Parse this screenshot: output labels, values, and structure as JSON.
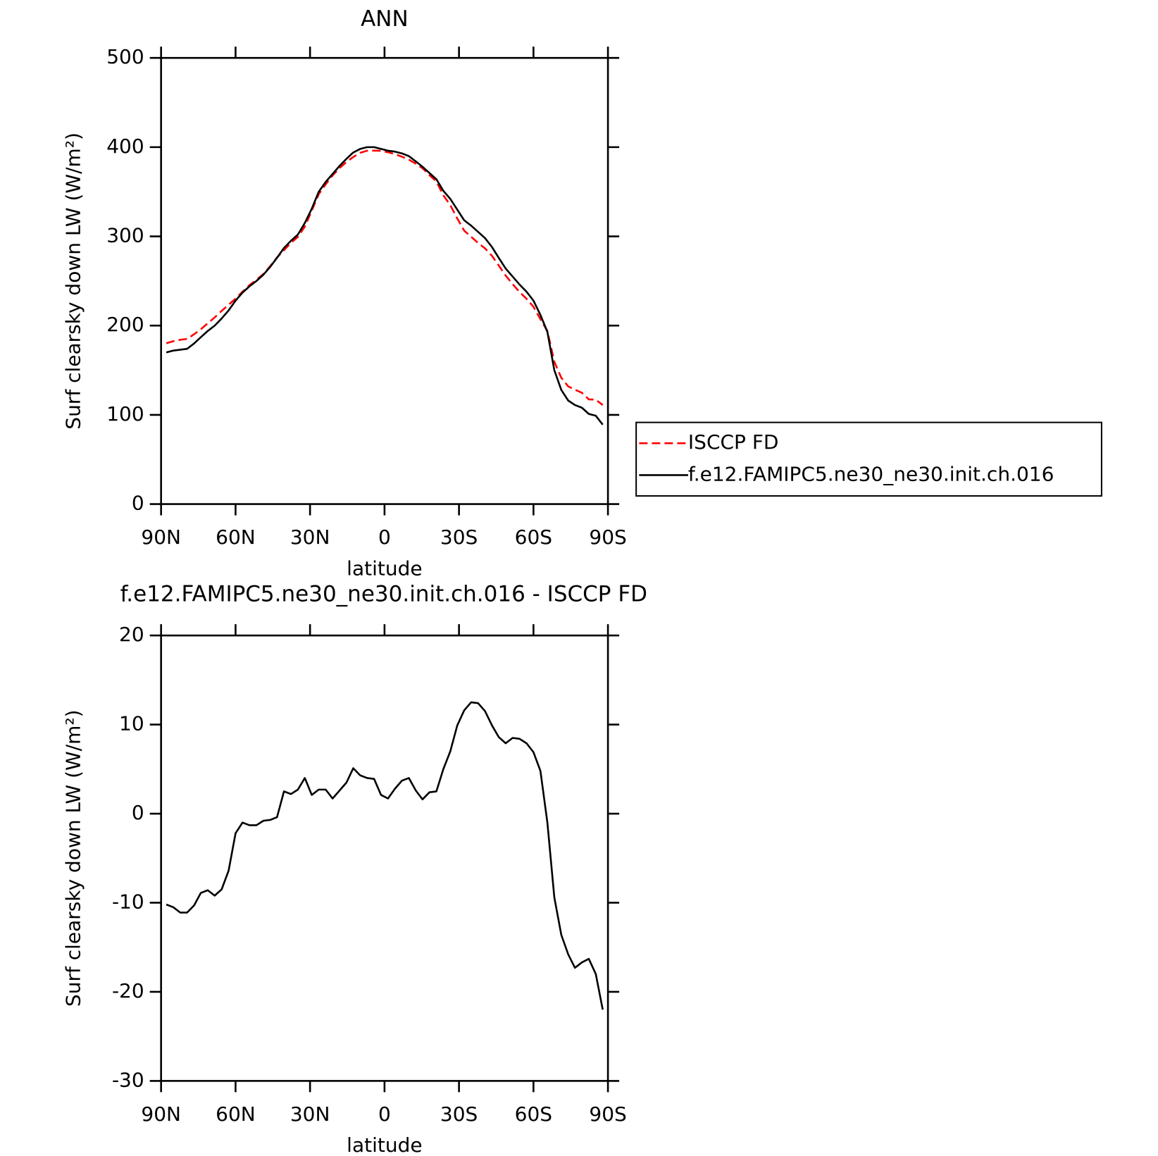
{
  "chart_data": [
    {
      "type": "line",
      "title": "ANN",
      "xlabel": "latitude",
      "ylabel": "Surf clearsky down LW (W/m²)",
      "x": [
        87.9,
        85.1,
        82.3,
        79.5,
        76.7,
        74.0,
        71.2,
        68.4,
        65.6,
        62.8,
        60.0,
        57.2,
        54.4,
        51.6,
        48.8,
        46.0,
        43.3,
        40.5,
        37.7,
        34.9,
        32.1,
        29.3,
        26.5,
        23.7,
        20.9,
        18.1,
        15.3,
        12.6,
        9.8,
        7.0,
        4.2,
        1.4,
        -1.4,
        -4.2,
        -7.0,
        -9.8,
        -12.6,
        -15.3,
        -18.1,
        -20.9,
        -23.7,
        -26.5,
        -29.3,
        -32.1,
        -34.9,
        -37.7,
        -40.5,
        -43.3,
        -46.0,
        -48.8,
        -51.6,
        -54.4,
        -57.2,
        -60.0,
        -62.8,
        -65.6,
        -68.4,
        -71.2,
        -74.0,
        -76.7,
        -79.5,
        -82.3,
        -85.1,
        -87.9
      ],
      "series": [
        {
          "name": "ISCCP FD",
          "color": "#ff0000",
          "dash": true,
          "values": [
            180.2,
            182.5,
            184.1,
            185.1,
            190.3,
            195.9,
            202.6,
            209.2,
            216.5,
            223.4,
            230.2,
            238,
            245.3,
            251.3,
            257.8,
            266.7,
            276.4,
            284.5,
            292.8,
            299.3,
            311,
            328.9,
            347.3,
            358.3,
            368.3,
            376.4,
            383.5,
            388.9,
            393.7,
            396,
            396.1,
            395.9,
            394.3,
            392.2,
            389.3,
            386,
            381.4,
            376.4,
            368.6,
            361.5,
            346,
            335,
            320.1,
            306.4,
            299.5,
            292.6,
            286.5,
            278.1,
            267.4,
            256.1,
            246.5,
            237.6,
            230.1,
            221.1,
            207.2,
            194,
            159.4,
            141.6,
            131.8,
            128.3,
            124.7,
            117.3,
            117,
            111
          ]
        },
        {
          "name": "f.e12.FAMIPC5.ne30_ne30.init.ch.016",
          "color": "#000000",
          "dash": false,
          "values": [
            170,
            172,
            173,
            174,
            180,
            187,
            194,
            200,
            208,
            217,
            228,
            237,
            244,
            250,
            257,
            266,
            276,
            287,
            295,
            302,
            315,
            331,
            350,
            361,
            370,
            379,
            387,
            394,
            398,
            400,
            400,
            398,
            396,
            395,
            393,
            390,
            384,
            378,
            371,
            364,
            351,
            342,
            330,
            318,
            312,
            305,
            298,
            288,
            276,
            264,
            255,
            246,
            238,
            228,
            212,
            193,
            150,
            128,
            116,
            111,
            108,
            101,
            99,
            89
          ]
        }
      ],
      "xlim": [
        90,
        -90
      ],
      "xticks": [
        {
          "value": 90,
          "label": "90N"
        },
        {
          "value": 60,
          "label": "60N"
        },
        {
          "value": 30,
          "label": "30N"
        },
        0,
        {
          "value": -30,
          "label": "30S"
        },
        {
          "value": -60,
          "label": "60S"
        },
        {
          "value": -90,
          "label": "90S"
        }
      ],
      "ylim": [
        0,
        500
      ],
      "yticks": [
        0,
        100,
        200,
        300,
        400,
        500
      ],
      "legend": "right"
    },
    {
      "type": "line",
      "title": "f.e12.FAMIPC5.ne30_ne30.init.ch.016 - ISCCP FD",
      "xlabel": "latitude",
      "ylabel": "Surf clearsky down LW (W/m²)",
      "x": [
        87.9,
        85.1,
        82.3,
        79.5,
        76.7,
        74.0,
        71.2,
        68.4,
        65.6,
        62.8,
        60.0,
        57.2,
        54.4,
        51.6,
        48.8,
        46.0,
        43.3,
        40.5,
        37.7,
        34.9,
        32.1,
        29.3,
        26.5,
        23.7,
        20.9,
        18.1,
        15.3,
        12.6,
        9.8,
        7.0,
        4.2,
        1.4,
        -1.4,
        -4.2,
        -7.0,
        -9.8,
        -12.6,
        -15.3,
        -18.1,
        -20.9,
        -23.7,
        -26.5,
        -29.3,
        -32.1,
        -34.9,
        -37.7,
        -40.5,
        -43.3,
        -46.0,
        -48.8,
        -51.6,
        -54.4,
        -57.2,
        -60.0,
        -62.8,
        -65.6,
        -68.4,
        -71.2,
        -74.0,
        -76.7,
        -79.5,
        -82.3,
        -85.1,
        -87.9
      ],
      "series": [
        {
          "color": "#000000",
          "dash": false,
          "values": [
            -10.2,
            -10.5,
            -11.1,
            -11.1,
            -10.3,
            -8.9,
            -8.6,
            -9.2,
            -8.5,
            -6.4,
            -2.2,
            -1.0,
            -1.3,
            -1.3,
            -0.8,
            -0.7,
            -0.4,
            2.5,
            2.2,
            2.7,
            4.0,
            2.1,
            2.7,
            2.7,
            1.7,
            2.6,
            3.5,
            5.1,
            4.3,
            4.0,
            3.9,
            2.1,
            1.7,
            2.8,
            3.7,
            4.0,
            2.6,
            1.6,
            2.4,
            2.5,
            5.0,
            7.0,
            9.9,
            11.6,
            12.5,
            12.4,
            11.5,
            9.9,
            8.6,
            7.9,
            8.5,
            8.4,
            7.9,
            6.9,
            4.8,
            -1.0,
            -9.4,
            -13.6,
            -15.8,
            -17.3,
            -16.7,
            -16.3,
            -18.0,
            -22.0
          ]
        }
      ],
      "xlim": [
        90,
        -90
      ],
      "xticks": [
        {
          "value": 90,
          "label": "90N"
        },
        {
          "value": 60,
          "label": "60N"
        },
        {
          "value": 30,
          "label": "30N"
        },
        0,
        {
          "value": -30,
          "label": "30S"
        },
        {
          "value": -60,
          "label": "60S"
        },
        {
          "value": -90,
          "label": "90S"
        }
      ],
      "ylim": [
        -30,
        20
      ],
      "yticks": [
        -30,
        -20,
        -10,
        0,
        10,
        20
      ]
    }
  ]
}
